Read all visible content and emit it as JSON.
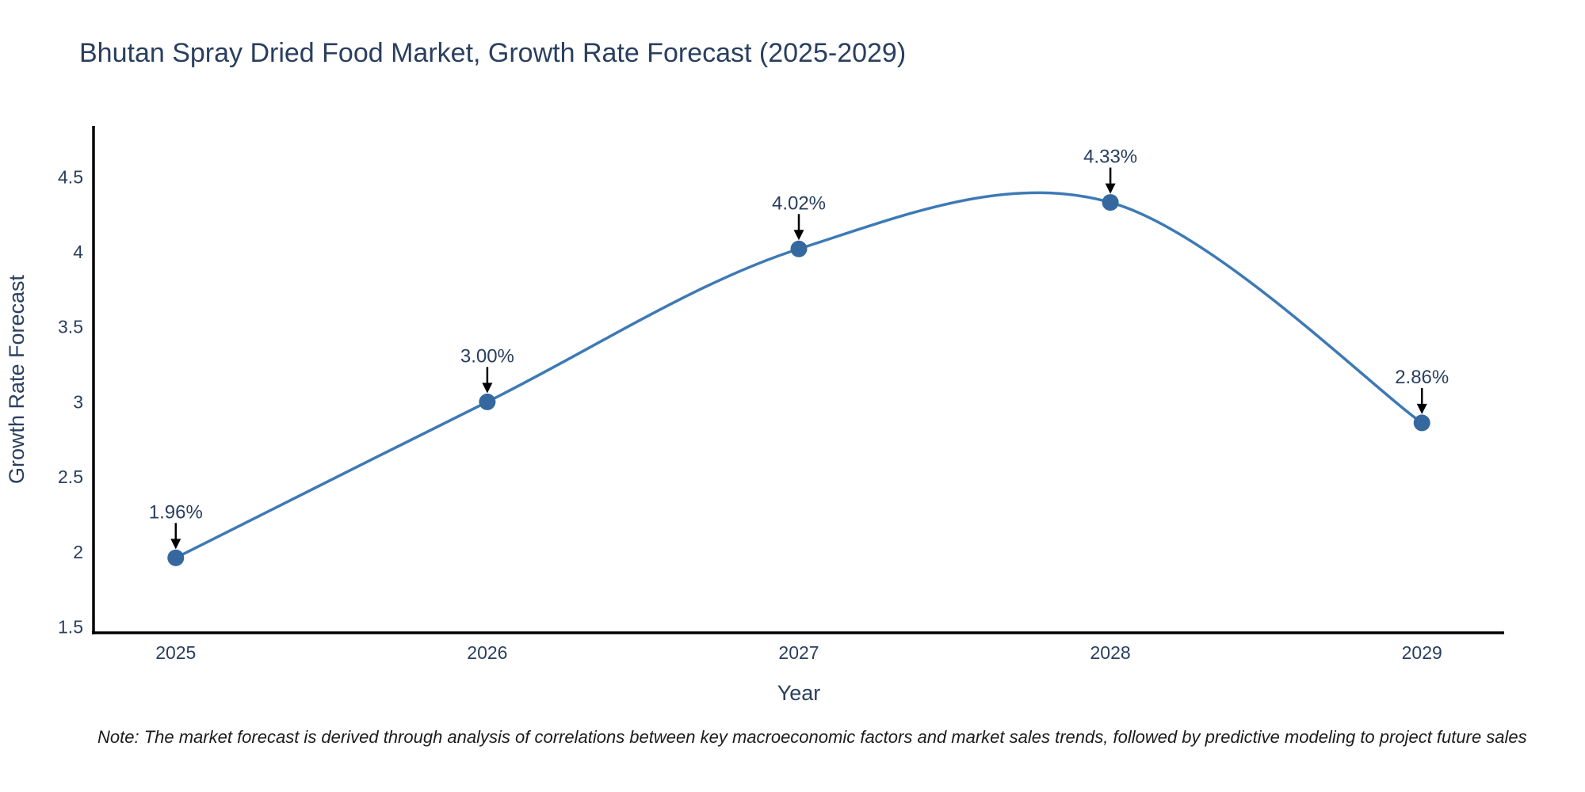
{
  "title": "Bhutan Spray Dried Food Market, Growth Rate Forecast (2025-2029)",
  "note": "Note: The market forecast is derived through analysis of correlations between key macroeconomic factors and market sales trends, followed by predictive modeling to project future sales",
  "colors": {
    "line": "#3d7ab5",
    "marker": "#35689f",
    "axis": "#000000",
    "tick_text": "#2a3f5f",
    "axis_title_text": "#2a3f5f",
    "annotation_text": "#2a3f5f",
    "arrow": "#000000",
    "background": "#ffffff"
  },
  "chart_data": {
    "type": "line",
    "line_shape": "spline",
    "x": [
      2025,
      2026,
      2027,
      2028,
      2029
    ],
    "series": [
      {
        "name": "Growth Rate Forecast",
        "values": [
          1.96,
          3.0,
          4.02,
          4.33,
          2.86
        ]
      }
    ],
    "point_labels": [
      "1.96%",
      "3.00%",
      "4.02%",
      "4.33%",
      "2.86%"
    ],
    "title": "Bhutan Spray Dried Food Market, Growth Rate Forecast (2025-2029)",
    "xlabel": "Year",
    "ylabel": "Growth Rate Forecast",
    "xticks": [
      "2025",
      "2026",
      "2027",
      "2028",
      "2029"
    ],
    "yticks": [
      "1.5",
      "2",
      "2.5",
      "3",
      "3.5",
      "4",
      "4.5"
    ],
    "ytick_values": [
      1.5,
      2,
      2.5,
      3,
      3.5,
      4,
      4.5
    ],
    "xlim": [
      2024.736,
      2029.264
    ],
    "ylim": [
      1.46,
      4.84
    ],
    "grid": false,
    "legend_visible": false,
    "marker": "circle"
  }
}
